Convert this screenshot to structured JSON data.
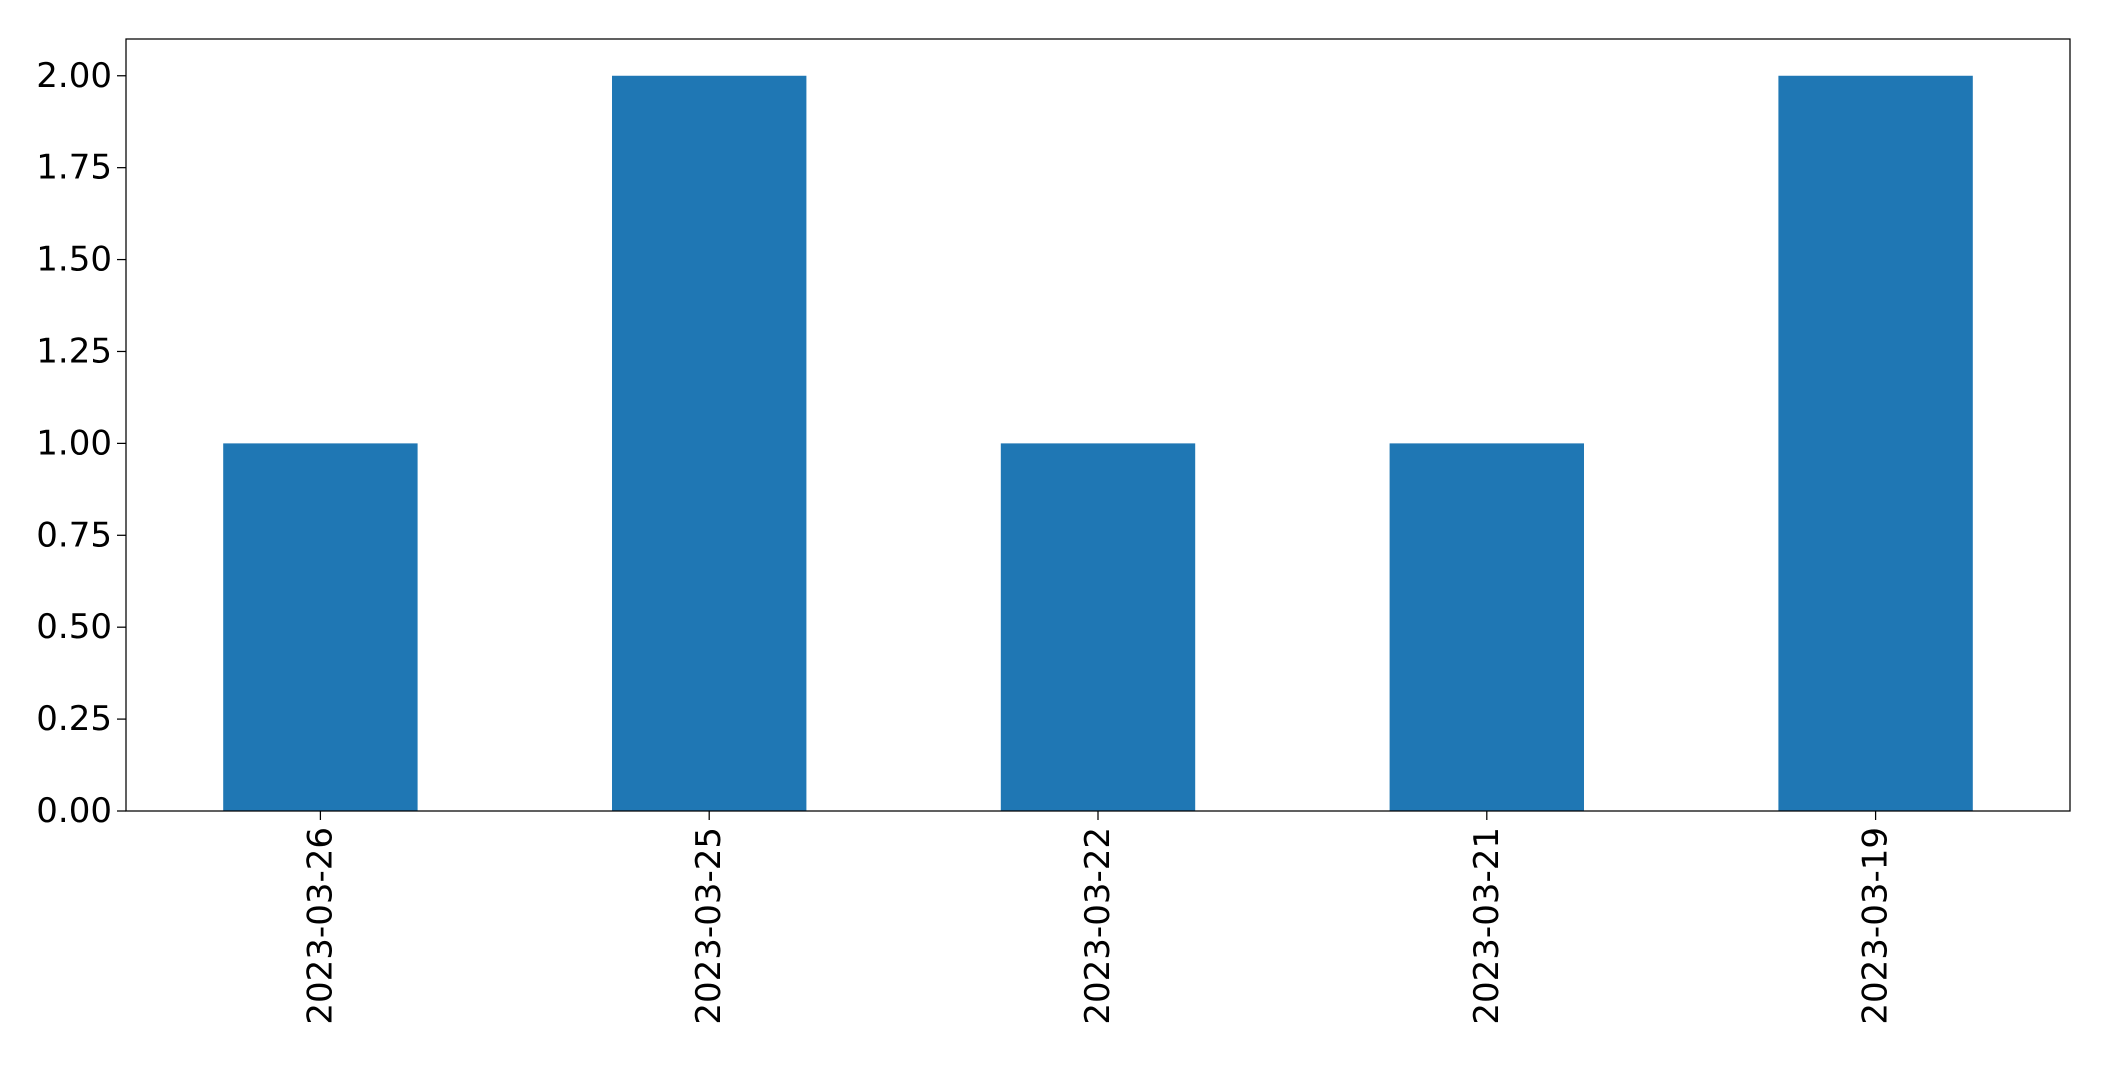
{
  "chart_data": {
    "type": "bar",
    "categories": [
      "2023-03-26",
      "2023-03-25",
      "2023-03-22",
      "2023-03-21",
      "2023-03-19"
    ],
    "values": [
      1,
      2,
      1,
      1,
      2
    ],
    "title": "",
    "xlabel": "",
    "ylabel": "",
    "ylim": [
      0,
      2.1
    ],
    "yticks": [
      0.0,
      0.25,
      0.5,
      0.75,
      1.0,
      1.25,
      1.5,
      1.75,
      2.0
    ],
    "ytick_labels": [
      "0.00",
      "0.25",
      "0.50",
      "0.75",
      "1.00",
      "1.25",
      "1.50",
      "1.75",
      "2.00"
    ],
    "bar_color": "#1f77b4",
    "grid": false,
    "legend": "none",
    "xtick_rotation": "vertical"
  }
}
